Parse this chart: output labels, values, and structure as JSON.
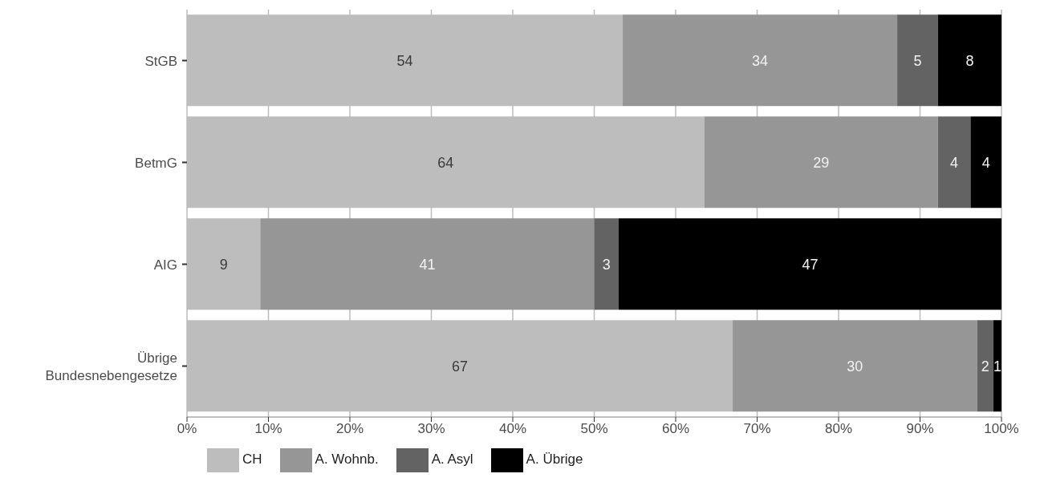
{
  "chart_data": {
    "type": "bar",
    "orientation": "horizontal",
    "stacked": true,
    "categories": [
      "StGB",
      "BetmG",
      "AIG",
      "Übrige Bundesnebengesetze"
    ],
    "series": [
      {
        "name": "CH",
        "color": "#bdbdbd",
        "values": [
          53.5,
          63.5,
          9,
          67
        ],
        "value_labels": [
          "54",
          "64",
          "9",
          "67"
        ]
      },
      {
        "name": "A. Wohnb.",
        "color": "#969696",
        "values": [
          33.7,
          28.7,
          41,
          30
        ],
        "value_labels": [
          "34",
          "29",
          "41",
          "30"
        ]
      },
      {
        "name": "A. Asyl",
        "color": "#636363",
        "values": [
          5,
          4,
          3,
          2
        ],
        "value_labels": [
          "5",
          "4",
          "3",
          "2"
        ]
      },
      {
        "name": "A. Übrige",
        "color": "#000000",
        "values": [
          7.8,
          3.8,
          47,
          1
        ],
        "value_labels": [
          "8",
          "4",
          "47",
          "1"
        ]
      }
    ],
    "xlim": [
      0,
      100
    ],
    "xticks": [
      {
        "value": 0,
        "label": "0%"
      },
      {
        "value": 10,
        "label": "10%"
      },
      {
        "value": 20,
        "label": "20%"
      },
      {
        "value": 30,
        "label": "30%"
      },
      {
        "value": 40,
        "label": "40%"
      },
      {
        "value": 50,
        "label": "50%"
      },
      {
        "value": 60,
        "label": "60%"
      },
      {
        "value": 70,
        "label": "70%"
      },
      {
        "value": 80,
        "label": "80%"
      },
      {
        "value": 90,
        "label": "90%"
      },
      {
        "value": 100,
        "label": "100%"
      }
    ],
    "grid": "x",
    "legend": "bottom left"
  }
}
